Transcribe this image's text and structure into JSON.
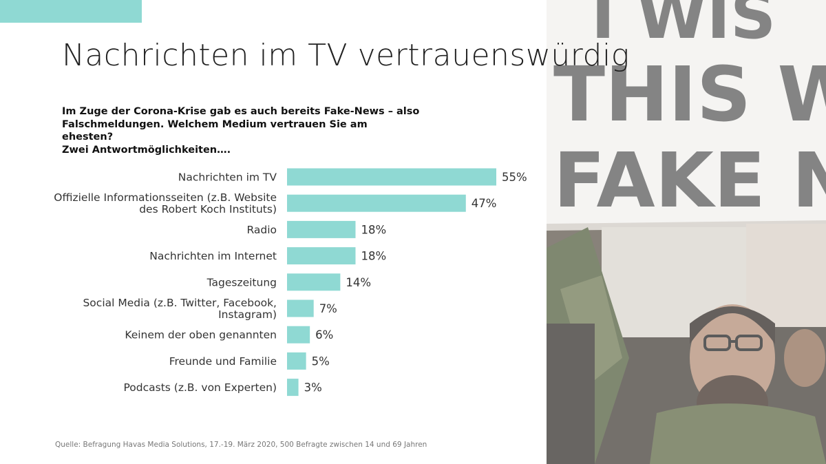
{
  "slide": {
    "title": "Nachrichten im TV vertrauenswürdig",
    "question": "Im Zuge der Corona-Krise gab es auch bereits Fake-News – also\nFalschmeldungen. Welchem Medium vertrauen Sie am ehesten?\nZwei Antwortmöglichkeiten….",
    "source": "Quelle: Befragung Havas Media Solutions, 17.-19. März 2020, 500 Befragte zwischen 14 und 69 Jahren",
    "accent_color": "#8fd9d3"
  },
  "photo": {
    "description_icon": "protest-photo",
    "sign_text_line1": "I WIS",
    "sign_text_line2": "THIS WE",
    "sign_text_line3": "FAKE NE"
  },
  "chart_data": {
    "type": "bar",
    "orientation": "horizontal",
    "categories": [
      "Nachrichten im TV",
      "Offizielle Informationsseiten (z.B. Website\ndes Robert Koch Instituts)",
      "Radio",
      "Nachrichten im Internet",
      "Tageszeitung",
      "Social Media (z.B. Twitter, Facebook,\nInstagram)",
      "Keinem der oben genannten",
      "Freunde und Familie",
      "Podcasts (z.B. von Experten)"
    ],
    "values": [
      55,
      47,
      18,
      18,
      14,
      7,
      6,
      5,
      3
    ],
    "value_labels": [
      "55%",
      "47%",
      "18%",
      "18%",
      "14%",
      "7%",
      "6%",
      "5%",
      "3%"
    ],
    "unit": "%",
    "xlim": [
      0,
      55
    ],
    "bar_color": "#8fd9d3",
    "grid": false,
    "legend": "none"
  }
}
